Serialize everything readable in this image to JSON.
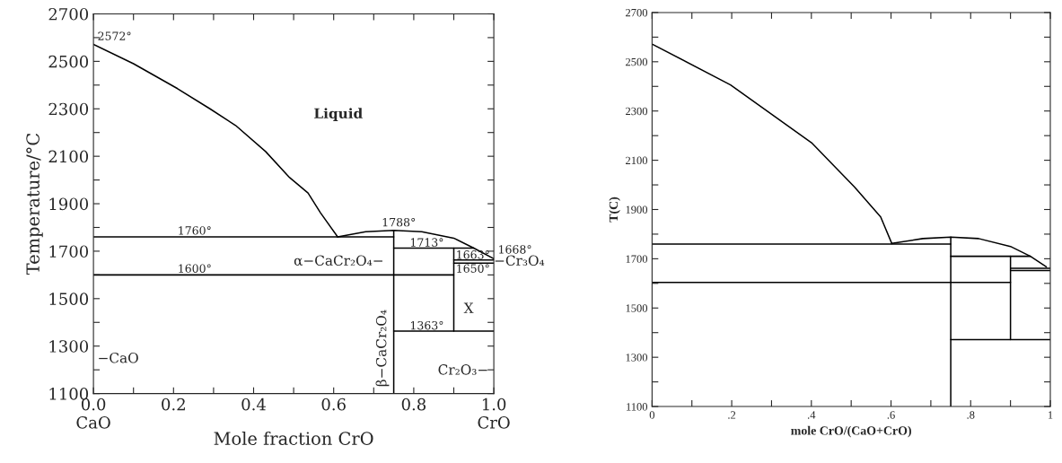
{
  "chart_data": [
    {
      "type": "line",
      "xlabel": "Mole fraction CrO",
      "ylabel": "Temperature/°C",
      "xlim": [
        0,
        1
      ],
      "ylim": [
        1100,
        2700
      ],
      "xticks": [
        {
          "value": 0,
          "label": "0.0\nCaO"
        },
        {
          "value": 0.1,
          "label": null
        },
        {
          "value": 0.2,
          "label": "0.2"
        },
        {
          "value": 0.3,
          "label": null
        },
        {
          "value": 0.4,
          "label": "0.4"
        },
        {
          "value": 0.5,
          "label": null
        },
        {
          "value": 0.6,
          "label": "0.6"
        },
        {
          "value": 0.7,
          "label": null
        },
        {
          "value": 0.8,
          "label": "0.8"
        },
        {
          "value": 0.9,
          "label": null
        },
        {
          "value": 1,
          "label": "1.0\nCrO"
        }
      ],
      "yticks": [
        1100,
        {
          "value": 1200,
          "label": null
        },
        1300,
        {
          "value": 1400,
          "label": null
        },
        1500,
        {
          "value": 1600,
          "label": null
        },
        1700,
        {
          "value": 1800,
          "label": null
        },
        1900,
        {
          "value": 2000,
          "label": null
        },
        2100,
        {
          "value": 2200,
          "label": null
        },
        2300,
        {
          "value": 2400,
          "label": null
        },
        2500,
        {
          "value": 2600,
          "label": null
        },
        2700
      ],
      "series": [
        {
          "color": "#000000",
          "x": [
            0,
            0.1,
            0.21,
            0.291,
            0.355,
            0.43,
            0.49,
            0.536,
            0.567,
            0.61
          ],
          "values": [
            2572,
            2490,
            2385,
            2300,
            2230,
            2120,
            2010,
            1945,
            1862,
            1760
          ]
        },
        {
          "color": "#000000",
          "x": [
            0.61,
            0.68,
            0.75,
            0.82,
            0.9,
            0.95,
            1.0
          ],
          "values": [
            1760,
            1782,
            1788,
            1782,
            1755,
            1713,
            1668
          ]
        },
        {
          "color": "#000000",
          "x": [
            0,
            0.75
          ],
          "values": [
            1760,
            1760
          ]
        },
        {
          "color": "#000000",
          "x": [
            0,
            0.9
          ],
          "values": [
            1600,
            1600
          ]
        },
        {
          "color": "#000000",
          "x": [
            0.75,
            0.75
          ],
          "values": [
            1100,
            1788
          ]
        },
        {
          "color": "#000000",
          "x": [
            0.75,
            0.95
          ],
          "values": [
            1713,
            1713
          ]
        },
        {
          "color": "#000000",
          "x": [
            0.9,
            0.9
          ],
          "values": [
            1363,
            1713
          ]
        },
        {
          "color": "#000000",
          "x": [
            0.9,
            1.0
          ],
          "values": [
            1663,
            1663
          ]
        },
        {
          "color": "#000000",
          "x": [
            0.9,
            1.0
          ],
          "values": [
            1650,
            1650
          ]
        },
        {
          "color": "#000000",
          "x": [
            0.75,
            1.0
          ],
          "values": [
            1363,
            1363
          ]
        }
      ],
      "annotations": [
        "2572°",
        "Liquid",
        {
          "text": "1760°",
          "x": 0.21,
          "y": 1770
        },
        {
          "text": "1788°",
          "x": 0.72,
          "y": 1805
        },
        {
          "text": "1713°",
          "x": 0.79,
          "y": 1720
        },
        {
          "text": "1600°",
          "x": 0.21,
          "y": 1610
        },
        "α−CaCr₂O₄−",
        "β−CaCr₂O₄",
        {
          "text": "1663°",
          "x": 0.905,
          "y": 1668
        },
        {
          "text": "1650°",
          "x": 0.905,
          "y": 1610
        },
        "1668°",
        {
          "text": "−Cr₃O₄",
          "x": 1.0,
          "y": 1640
        },
        "X",
        {
          "text": "1363°",
          "x": 0.79,
          "y": 1370
        },
        "Cr₂O₃−",
        "−CaO"
      ]
    },
    {
      "type": "line",
      "xlabel": "mole CrO/(CaO+CrO)",
      "ylabel": "T(C)",
      "xlim": [
        0,
        1
      ],
      "ylim": [
        1100,
        2700
      ],
      "xticks": [
        {
          "value": 0,
          "label": "0"
        },
        {
          "value": 0.1,
          "label": null
        },
        {
          "value": 0.2,
          "label": ".2"
        },
        {
          "value": 0.3,
          "label": null
        },
        {
          "value": 0.4,
          "label": ".4"
        },
        {
          "value": 0.5,
          "label": null
        },
        {
          "value": 0.6,
          "label": ".6"
        },
        {
          "value": 0.7,
          "label": null
        },
        {
          "value": 0.8,
          "label": ".8"
        },
        {
          "value": 0.9,
          "label": null
        },
        {
          "value": 1,
          "label": "1"
        }
      ],
      "yticks": [
        1100,
        {
          "value": 1200,
          "label": null
        },
        1300,
        {
          "value": 1400,
          "label": null
        },
        1500,
        {
          "value": 1600,
          "label": null
        },
        1700,
        {
          "value": 1800,
          "label": null
        },
        1900,
        {
          "value": 2000,
          "label": null
        },
        2100,
        {
          "value": 2200,
          "label": null
        },
        2300,
        {
          "value": 2400,
          "label": null
        },
        2500,
        {
          "value": 2600,
          "label": null
        },
        2700
      ],
      "series": [
        {
          "color": "#000000",
          "x": [
            0,
            0.197,
            0.402,
            0.508,
            0.574,
            0.602
          ],
          "values": [
            2572,
            2406,
            2169,
            1992,
            1870,
            1762
          ]
        },
        {
          "color": "#000000",
          "x": [
            0.602,
            0.68,
            0.75,
            0.82,
            0.9,
            0.95,
            0.99
          ],
          "values": [
            1762,
            1782,
            1788,
            1782,
            1750,
            1710,
            1667
          ]
        },
        {
          "color": "#000000",
          "x": [
            0,
            0.75
          ],
          "values": [
            1760,
            1760
          ]
        },
        {
          "color": "#000000",
          "x": [
            0,
            0.9
          ],
          "values": [
            1604,
            1604
          ]
        },
        {
          "color": "#000000",
          "x": [
            0.75,
            0.75
          ],
          "values": [
            1100,
            1788
          ]
        },
        {
          "color": "#000000",
          "x": [
            0.75,
            0.95
          ],
          "values": [
            1710,
            1710
          ]
        },
        {
          "color": "#000000",
          "x": [
            0.9,
            0.9
          ],
          "values": [
            1372,
            1710
          ]
        },
        {
          "color": "#000000",
          "x": [
            0.9,
            1.0
          ],
          "values": [
            1661,
            1661
          ]
        },
        {
          "color": "#000000",
          "x": [
            0.9,
            1.0
          ],
          "values": [
            1652,
            1652
          ]
        },
        {
          "color": "#000000",
          "x": [
            0.75,
            1.0
          ],
          "values": [
            1372,
            1372
          ]
        }
      ]
    }
  ]
}
